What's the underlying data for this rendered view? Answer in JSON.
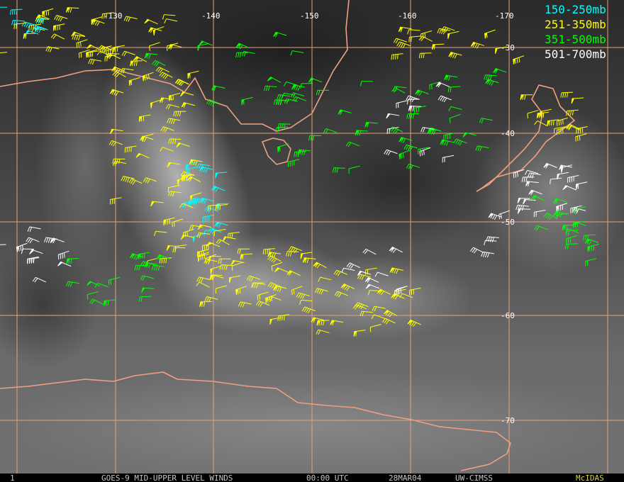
{
  "legend": [
    {
      "label": "150-250mb",
      "color": "#00ffff"
    },
    {
      "label": "251-350mb",
      "color": "#ffff00"
    },
    {
      "label": "351-500mb",
      "color": "#00ff00"
    },
    {
      "label": "501-700mb",
      "color": "#ffffff"
    }
  ],
  "grid": {
    "longitude_labels": [
      "-130",
      "-140",
      "-150",
      "-160",
      "-170"
    ],
    "latitude_labels": [
      "-30",
      "-40",
      "-50",
      "-60",
      "-70"
    ]
  },
  "footer": {
    "frame": "1",
    "product": "GOES-9 MID-UPPER LEVEL WINDS",
    "time": "00:00 UTC",
    "date": "28MAR04",
    "source": "UW-CIMSS",
    "software": "McIDAS"
  }
}
